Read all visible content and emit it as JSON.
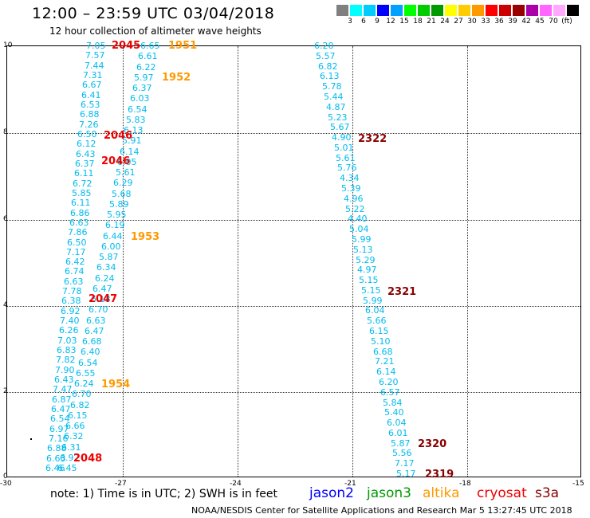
{
  "header": {
    "title": "12:00 – 23:59 UTC 03/04/2018",
    "subtitle": "12 hour collection of altimeter wave heights"
  },
  "scale": {
    "colors": [
      "#808080",
      "#00ffff",
      "#00ccff",
      "#0000ff",
      "#00a0ff",
      "#00ff00",
      "#00cc00",
      "#009900",
      "#ffff00",
      "#ffcc00",
      "#ff9900",
      "#ff0000",
      "#cc0000",
      "#990000",
      "#aa00aa",
      "#ff66ff",
      "#ffaaff",
      "#000000"
    ],
    "labels": [
      "3",
      "6",
      "9",
      "12",
      "15",
      "18",
      "21",
      "24",
      "27",
      "30",
      "33",
      "36",
      "39",
      "42",
      "45",
      "70",
      "(ft)"
    ]
  },
  "axes": {
    "x_ticks": [
      "-30",
      "-27",
      "-24",
      "-21",
      "-18",
      "-15"
    ],
    "y_ticks": [
      "10",
      "8",
      "6",
      "4",
      "2",
      "0"
    ]
  },
  "tracks": {
    "track_a": [
      "7.05",
      "7.57",
      "7.44",
      "7.31",
      "6.67",
      "6.41",
      "6.53",
      "6.88",
      "7.26",
      "6.50",
      "6.12",
      "6.43",
      "6.37",
      "6.11",
      "6.72",
      "5.85",
      "6.11",
      "6.86",
      "6.63",
      "7.86",
      "6.50",
      "7.17",
      "6.42",
      "6.74",
      "6.63",
      "7.78",
      "6.38",
      "6.92",
      "7.40",
      "6.26",
      "7.03",
      "6.83",
      "7.82",
      "7.90",
      "6.43",
      "7.47",
      "6.87",
      "6.47",
      "6.54",
      "6.97",
      "7.16",
      "6.88",
      "6.63",
      "6.46"
    ],
    "track_b": [
      "6.65",
      "6.61",
      "6.22",
      "5.97",
      "6.37",
      "6.03",
      "6.54",
      "5.83",
      "6.13",
      "5.91",
      "6.14",
      "6.05",
      "5.61",
      "6.29",
      "5.68",
      "5.89",
      "5.95",
      "6.19",
      "6.44",
      "6.00",
      "5.87",
      "6.34",
      "6.24",
      "6.47",
      "6.18",
      "6.70",
      "6.63",
      "6.47",
      "6.68",
      "6.40",
      "6.54",
      "6.55",
      "6.24",
      "6.70",
      "6.82",
      "6.15",
      "6.66",
      "6.32",
      "6.31",
      "6.92",
      "6.45"
    ],
    "track_c": [
      "6.20",
      "5.57",
      "6.82",
      "6.13",
      "5.78",
      "5.44",
      "4.87",
      "5.23",
      "5.67",
      "4.90",
      "5.01",
      "5.61",
      "5.76",
      "4.34",
      "5.39",
      "4.96",
      "5.22",
      "4.40",
      "5.04",
      "5.99",
      "5.13",
      "5.29",
      "4.97",
      "5.15",
      "5.15",
      "5.99",
      "6.04",
      "5.66",
      "6.15",
      "5.10",
      "6.68",
      "7.21",
      "6.14",
      "6.20",
      "6.57",
      "5.84",
      "5.40",
      "6.04",
      "6.01",
      "5.87",
      "5.56",
      "7.17",
      "5.17"
    ]
  },
  "time_labels": {
    "t2045": "2045",
    "t2046a": "2046",
    "t2046b": "2046",
    "t2047": "2047",
    "t2048": "2048",
    "t1951": "1951",
    "t1952": "1952",
    "t1953": "1953",
    "t1954": "1954",
    "t2322": "2322",
    "t2321": "2321",
    "t2320": "2320",
    "t2319": "2319"
  },
  "colors": {
    "wave_value": "#00bbee",
    "cryosat": "#ee0000",
    "altika": "#ff9900",
    "s3a": "#880000",
    "jason2": "#0000ff",
    "jason3": "#009900"
  },
  "footer": {
    "note": "note: 1) Time is in UTC; 2) SWH is in feet",
    "satellites": [
      "jason2",
      "jason3",
      "altika",
      "cryosat",
      "s3a"
    ],
    "credit": "NOAA/NESDIS Center for Satellite Applications and Research   Mar  5 13:27:45 UTC 2018"
  }
}
